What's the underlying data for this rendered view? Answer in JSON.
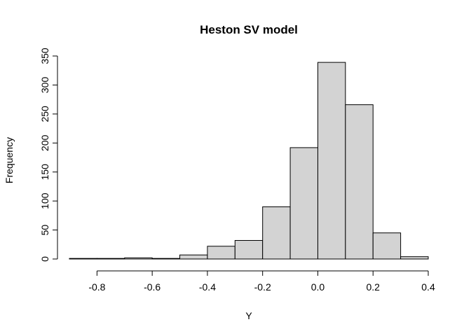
{
  "chart_data": {
    "type": "bar",
    "title": "Heston SV model",
    "xlabel": "Y",
    "ylabel": "Frequency",
    "bins": [
      {
        "from": -0.9,
        "to": -0.8,
        "count": 1
      },
      {
        "from": -0.8,
        "to": -0.7,
        "count": 1
      },
      {
        "from": -0.7,
        "to": -0.6,
        "count": 2
      },
      {
        "from": -0.6,
        "to": -0.5,
        "count": 1
      },
      {
        "from": -0.5,
        "to": -0.4,
        "count": 7
      },
      {
        "from": -0.4,
        "to": -0.3,
        "count": 22
      },
      {
        "from": -0.3,
        "to": -0.2,
        "count": 32
      },
      {
        "from": -0.2,
        "to": -0.1,
        "count": 90
      },
      {
        "from": -0.1,
        "to": 0.0,
        "count": 192
      },
      {
        "from": 0.0,
        "to": 0.1,
        "count": 339
      },
      {
        "from": 0.1,
        "to": 0.2,
        "count": 266
      },
      {
        "from": 0.2,
        "to": 0.3,
        "count": 45
      },
      {
        "from": 0.3,
        "to": 0.4,
        "count": 4
      }
    ],
    "xlim": [
      -0.9,
      0.4
    ],
    "ylim": [
      0,
      350
    ],
    "x_ticks": [
      -0.8,
      -0.6,
      -0.4,
      -0.2,
      0.0,
      0.2,
      0.4
    ],
    "x_tick_labels": [
      "-0.8",
      "-0.6",
      "-0.4",
      "-0.2",
      "0.0",
      "0.2",
      "0.4"
    ],
    "y_ticks": [
      0,
      50,
      100,
      150,
      200,
      250,
      300,
      350
    ],
    "y_tick_labels": [
      "0",
      "50",
      "100",
      "150",
      "200",
      "250",
      "300",
      "350"
    ],
    "grid": false,
    "colors": {
      "bar_fill": "#d3d3d3",
      "bar_edge": "#000000"
    }
  }
}
